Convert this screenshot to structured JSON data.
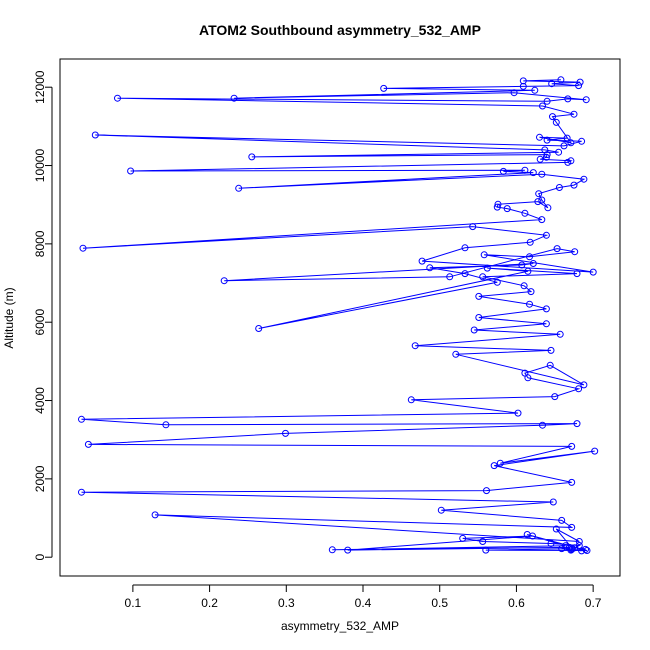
{
  "chart_data": {
    "type": "line",
    "title": "ATOM2 Southbound asymmetry_532_AMP",
    "xlabel": "asymmetry_532_AMP",
    "ylabel": "Altitude (m)",
    "xlim": [
      0.005,
      0.735
    ],
    "ylim": [
      -480,
      12720
    ],
    "x_ticks": [
      0.1,
      0.2,
      0.3,
      0.4,
      0.5,
      0.6,
      0.7
    ],
    "x_tick_labels": [
      "0.1",
      "0.2",
      "0.3",
      "0.4",
      "0.5",
      "0.6",
      "0.7"
    ],
    "y_ticks": [
      0,
      2000,
      4000,
      6000,
      8000,
      10000,
      12000
    ],
    "y_tick_labels": [
      "0",
      "2000",
      "4000",
      "6000",
      "8000",
      "10000",
      "12000"
    ],
    "grid": false,
    "legend": "none",
    "series": [
      {
        "color": "#0000ff",
        "marker": "open-circle",
        "x": [
          0.672,
          0.685,
          0.659,
          0.671,
          0.69,
          0.676,
          0.682,
          0.645,
          0.556,
          0.53,
          0.621,
          0.38,
          0.669,
          0.36,
          0.664,
          0.614,
          0.692,
          0.56,
          0.673,
          0.652,
          0.682,
          0.129,
          0.672,
          0.659,
          0.502,
          0.648,
          0.033,
          0.561,
          0.672,
          0.571,
          0.702,
          0.579,
          0.672,
          0.042,
          0.299,
          0.634,
          0.679,
          0.143,
          0.033,
          0.602,
          0.463,
          0.65,
          0.681,
          0.615,
          0.611,
          0.644,
          0.688,
          0.521,
          0.645,
          0.468,
          0.657,
          0.545,
          0.639,
          0.551,
          0.639,
          0.617,
          0.551,
          0.619,
          0.61,
          0.556,
          0.679,
          0.562,
          0.615,
          0.264,
          0.575,
          0.533,
          0.487,
          0.607,
          0.622,
          0.219,
          0.513,
          0.653,
          0.676,
          0.617,
          0.558,
          0.7,
          0.477,
          0.533,
          0.618,
          0.639,
          0.543,
          0.035,
          0.633,
          0.611,
          0.588,
          0.575,
          0.576,
          0.628,
          0.641,
          0.633,
          0.629,
          0.656,
          0.675,
          0.688,
          0.633,
          0.238,
          0.622,
          0.583,
          0.611,
          0.097,
          0.667,
          0.671,
          0.631,
          0.639,
          0.64,
          0.255,
          0.655,
          0.637,
          0.051,
          0.662,
          0.685,
          0.64,
          0.666,
          0.63,
          0.671,
          0.652,
          0.647,
          0.675,
          0.634,
          0.08,
          0.64,
          0.667,
          0.691,
          0.597,
          0.232,
          0.624,
          0.427,
          0.609,
          0.681,
          0.646,
          0.683,
          0.609,
          0.658
        ],
        "y": [
          200,
          160,
          220,
          180,
          200,
          240,
          300,
          350,
          400,
          480,
          540,
          180,
          250,
          190,
          290,
          580,
          170,
          180,
          220,
          720,
          400,
          1080,
          760,
          940,
          1200,
          1410,
          1660,
          1700,
          1910,
          2340,
          2710,
          2400,
          2830,
          2880,
          3160,
          3370,
          3410,
          3380,
          3520,
          3680,
          4020,
          4100,
          4300,
          4580,
          4700,
          4900,
          4400,
          5180,
          5280,
          5400,
          5690,
          5800,
          5960,
          6120,
          6340,
          6460,
          6660,
          6780,
          6930,
          7160,
          7240,
          7380,
          7300,
          5840,
          7020,
          7240,
          7390,
          7460,
          7500,
          7060,
          7160,
          7880,
          7800,
          7670,
          7720,
          7280,
          7560,
          7900,
          8040,
          8220,
          8440,
          7890,
          8620,
          8780,
          8900,
          8940,
          9010,
          9080,
          8920,
          9120,
          9280,
          9440,
          9500,
          9650,
          9780,
          9420,
          9820,
          9850,
          9880,
          9860,
          10080,
          10120,
          10160,
          10210,
          10280,
          10220,
          10340,
          10400,
          10780,
          10500,
          10620,
          10650,
          10700,
          10720,
          10580,
          11100,
          11250,
          11310,
          11520,
          11720,
          11640,
          11700,
          11680,
          11860,
          11720,
          11920,
          11970,
          12020,
          12040,
          12090,
          12130,
          12160,
          12190
        ]
      }
    ]
  }
}
